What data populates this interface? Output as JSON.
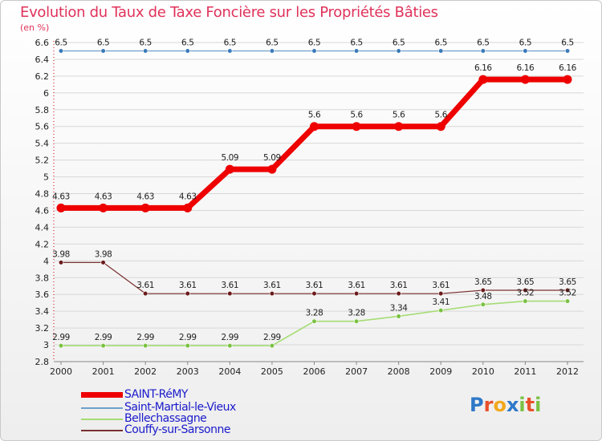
{
  "colors": {
    "title": "#e0325a",
    "grid": "#d8d8d8",
    "axis_red": "#cc0000"
  },
  "logo": {
    "text": "Proxiti",
    "letters": [
      "P",
      "r",
      "o",
      "x",
      "i",
      "t",
      "i"
    ],
    "letter_colors": [
      "#2e78c8",
      "#e8502a",
      "#f2a81e",
      "#2e78c8",
      "#7ac142",
      "#e8502a",
      "#7ac142"
    ]
  },
  "chart_data": {
    "type": "line",
    "title": "Evolution du Taux de Taxe Foncière sur les Propriétés Bâties",
    "ylabel": "(en %)",
    "xlabel": "",
    "ylim": [
      2.8,
      6.6
    ],
    "yticks": [
      "2.8",
      "3",
      "3.2",
      "3.4",
      "3.6",
      "3.8",
      "4",
      "4.2",
      "4.4",
      "4.6",
      "4.8",
      "5",
      "5.2",
      "5.4",
      "5.6",
      "5.8",
      "6",
      "6.2",
      "6.4",
      "6.6"
    ],
    "x": [
      "2000",
      "2001",
      "2002",
      "2003",
      "2004",
      "2005",
      "2006",
      "2007",
      "2008",
      "2009",
      "2010",
      "2011",
      "2012"
    ],
    "series": [
      {
        "name": "SAINT-RéMY",
        "color": "#ee0000",
        "width": 7,
        "marker": 5.5,
        "values": [
          4.63,
          4.63,
          4.63,
          4.63,
          5.09,
          5.09,
          5.6,
          5.6,
          5.6,
          5.6,
          6.16,
          6.16,
          6.16
        ],
        "labels": [
          "4.63",
          "4.63",
          "4.63",
          "4.63",
          "5.09",
          "5.09",
          "5.6",
          "5.6",
          "5.6",
          "5.6",
          "6.16",
          "6.16",
          "6.16"
        ]
      },
      {
        "name": "Saint-Martial-le-Vieux",
        "color": "#6ea0cc",
        "width": 1.2,
        "marker": 2.8,
        "marker_color": "#3a7ab8",
        "values": [
          6.5,
          6.5,
          6.5,
          6.5,
          6.5,
          6.5,
          6.5,
          6.5,
          6.5,
          6.5,
          6.5,
          6.5,
          6.5
        ],
        "labels": [
          "6.5",
          "6.5",
          "6.5",
          "6.5",
          "6.5",
          "6.5",
          "6.5",
          "6.5",
          "6.5",
          "6.5",
          "6.5",
          "6.5",
          "6.5"
        ]
      },
      {
        "name": "Bellechassagne",
        "color": "#a6dc74",
        "width": 1.6,
        "marker": 2.8,
        "marker_color": "#7ac142",
        "values": [
          2.99,
          2.99,
          2.99,
          2.99,
          2.99,
          2.99,
          3.28,
          3.28,
          3.34,
          3.41,
          3.48,
          3.52,
          3.52
        ],
        "labels": [
          "2.99",
          "2.99",
          "2.99",
          "2.99",
          "2.99",
          "2.99",
          "3.28",
          "3.28",
          "3.34",
          "3.41",
          "3.48",
          "3.52",
          "3.52"
        ]
      },
      {
        "name": "Couffy-sur-Sarsonne",
        "color": "#7a3030",
        "width": 1.2,
        "marker": 2.8,
        "marker_color": "#6a1a1a",
        "values": [
          3.98,
          3.98,
          3.61,
          3.61,
          3.61,
          3.61,
          3.61,
          3.61,
          3.61,
          3.61,
          3.65,
          3.65,
          3.65
        ],
        "labels": [
          "3.98",
          "3.98",
          "3.61",
          "3.61",
          "3.61",
          "3.61",
          "3.61",
          "3.61",
          "3.61",
          "3.61",
          "3.65",
          "3.65",
          "3.65"
        ]
      }
    ]
  }
}
